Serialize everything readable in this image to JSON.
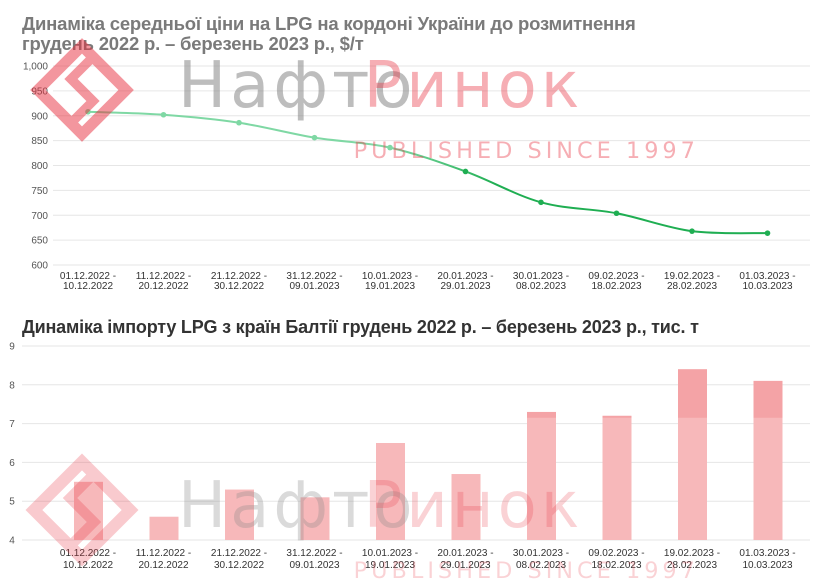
{
  "watermark": {
    "brand_gray": "Нафто",
    "brand_red": "Ринок",
    "tagline": "PUBLISHED SINCE 1997"
  },
  "colors": {
    "line_light": "#7fd8a4",
    "line_dark": "#1fae52",
    "bar": "#f7b8ba",
    "bar_top": "#f4a3a6",
    "grid": "#e6e6e6"
  },
  "chart_data": [
    {
      "type": "line",
      "title": "Динаміка середньої ціни на LPG на кордоні України до розмитнення грудень 2022 р. – березень 2023 р., $/т",
      "title_lines": [
        "Динаміка середньої ціни на LPG на кордоні України до розмитнення",
        "грудень 2022 р. – березень 2023 р., $/т"
      ],
      "categories": [
        [
          "01.12.2022 -",
          "10.12.2022"
        ],
        [
          "11.12.2022 -",
          "20.12.2022"
        ],
        [
          "21.12.2022 -",
          "30.12.2022"
        ],
        [
          "31.12.2022 -",
          "09.01.2023"
        ],
        [
          "10.01.2023 -",
          "19.01.2023"
        ],
        [
          "20.01.2023 -",
          "29.01.2023"
        ],
        [
          "30.01.2023 -",
          "08.02.2023"
        ],
        [
          "09.02.2023 -",
          "18.02.2023"
        ],
        [
          "19.02.2023 -",
          "28.02.2023"
        ],
        [
          "01.03.2023 -",
          "10.03.2023"
        ]
      ],
      "values": [
        908,
        902,
        886,
        856,
        836,
        788,
        726,
        704,
        668,
        664
      ],
      "yticks": [
        "600",
        "650",
        "700",
        "750",
        "800",
        "850",
        "900",
        "950",
        "1,000"
      ],
      "ylim": [
        600,
        1000
      ],
      "xlabel": "",
      "ylabel": "",
      "grid": true
    },
    {
      "type": "bar",
      "title": "Динаміка імпорту LPG з країн Балтії грудень 2022 р. – березень 2023 р., тис. т",
      "categories": [
        [
          "01.12.2022 -",
          "10.12.2022"
        ],
        [
          "11.12.2022 -",
          "20.12.2022"
        ],
        [
          "21.12.2022 -",
          "30.12.2022"
        ],
        [
          "31.12.2022 -",
          "09.01.2023"
        ],
        [
          "10.01.2023 -",
          "19.01.2023"
        ],
        [
          "20.01.2023 -",
          "29.01.2023"
        ],
        [
          "30.01.2023 -",
          "08.02.2023"
        ],
        [
          "09.02.2023 -",
          "18.02.2023"
        ],
        [
          "19.02.2023 -",
          "28.02.2023"
        ],
        [
          "01.03.2023 -",
          "10.03.2023"
        ]
      ],
      "values": [
        5.5,
        4.6,
        5.3,
        5.1,
        6.5,
        5.7,
        7.3,
        7.2,
        8.4,
        8.1
      ],
      "yticks": [
        "4",
        "5",
        "6",
        "7",
        "8",
        "9"
      ],
      "ylim": [
        4,
        9
      ],
      "xlabel": "",
      "ylabel": "",
      "grid": true
    }
  ]
}
